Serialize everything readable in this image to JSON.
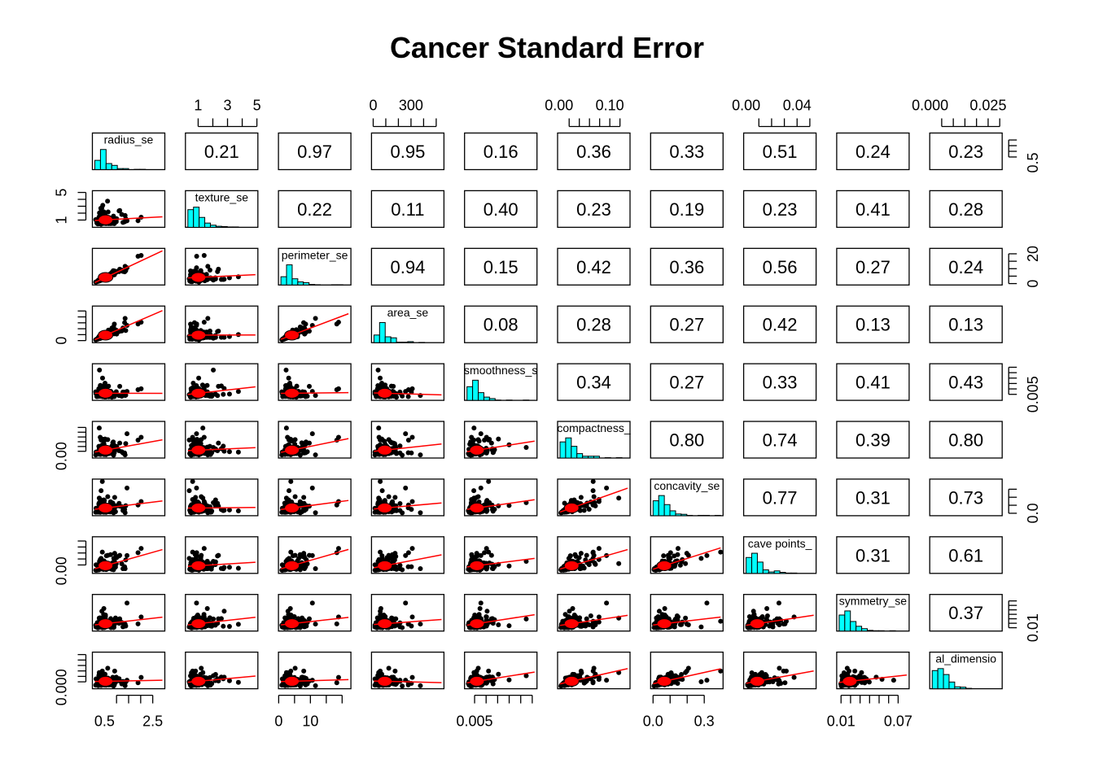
{
  "chart_data": {
    "type": "scatter",
    "title": "Cancer Standard Error",
    "variables": [
      "radius_se",
      "texture_se",
      "perimeter_se",
      "area_se",
      "smoothness_se",
      "compactness_se",
      "concavity_se",
      "concave points_se",
      "symmetry_se",
      "fractal_dimension_se"
    ],
    "diagonal_labels": [
      "radius_se",
      "texture_se",
      "perimeter_se",
      "area_se",
      "smoothness_s",
      "compactness_",
      "concavity_se",
      "cave points_",
      "symmetry_se",
      "al_dimensio"
    ],
    "correlation_matrix": [
      [
        1,
        0.21,
        0.97,
        0.95,
        0.16,
        0.36,
        0.33,
        0.51,
        0.24,
        0.23
      ],
      [
        0.21,
        1,
        0.22,
        0.11,
        0.4,
        0.23,
        0.19,
        0.23,
        0.41,
        0.28
      ],
      [
        0.97,
        0.22,
        1,
        0.94,
        0.15,
        0.42,
        0.36,
        0.56,
        0.27,
        0.24
      ],
      [
        0.95,
        0.11,
        0.94,
        1,
        0.08,
        0.28,
        0.27,
        0.42,
        0.13,
        0.13
      ],
      [
        0.16,
        0.4,
        0.15,
        0.08,
        1,
        0.34,
        0.27,
        0.33,
        0.41,
        0.43
      ],
      [
        0.36,
        0.23,
        0.42,
        0.28,
        0.34,
        1,
        0.8,
        0.74,
        0.39,
        0.8
      ],
      [
        0.33,
        0.19,
        0.36,
        0.27,
        0.27,
        0.8,
        1,
        0.77,
        0.31,
        0.73
      ],
      [
        0.51,
        0.23,
        0.56,
        0.42,
        0.33,
        0.74,
        0.77,
        1,
        0.31,
        0.61
      ],
      [
        0.24,
        0.41,
        0.27,
        0.13,
        0.41,
        0.39,
        0.31,
        0.31,
        1,
        0.37
      ],
      [
        0.23,
        0.28,
        0.24,
        0.13,
        0.43,
        0.8,
        0.73,
        0.61,
        0.37,
        1
      ]
    ],
    "correlation_labels": [
      [
        "",
        "0.21",
        "0.97",
        "0.95",
        "0.16",
        "0.36",
        "0.33",
        "0.51",
        "0.24",
        "0.23"
      ],
      [
        "",
        "",
        "0.22",
        "0.11",
        "0.40",
        "0.23",
        "0.19",
        "0.23",
        "0.41",
        "0.28"
      ],
      [
        "",
        "",
        "",
        "0.94",
        "0.15",
        "0.42",
        "0.36",
        "0.56",
        "0.27",
        "0.24"
      ],
      [
        "",
        "",
        "",
        "",
        "0.08",
        "0.28",
        "0.27",
        "0.42",
        "0.13",
        "0.13"
      ],
      [
        "",
        "",
        "",
        "",
        "",
        "0.34",
        "0.27",
        "0.33",
        "0.41",
        "0.43"
      ],
      [
        "",
        "",
        "",
        "",
        "",
        "",
        "0.80",
        "0.74",
        "0.39",
        "0.80"
      ],
      [
        "",
        "",
        "",
        "",
        "",
        "",
        "",
        "0.77",
        "0.31",
        "0.73"
      ],
      [
        "",
        "",
        "",
        "",
        "",
        "",
        "",
        "",
        "0.31",
        "0.61"
      ],
      [
        "",
        "",
        "",
        "",
        "",
        "",
        "",
        "",
        "",
        "0.37"
      ],
      [
        "",
        "",
        "",
        "",
        "",
        "",
        "",
        "",
        "",
        ""
      ]
    ],
    "ranges": [
      [
        0.1,
        2.9
      ],
      [
        0.3,
        4.9
      ],
      [
        0.7,
        22
      ],
      [
        6,
        542
      ],
      [
        0.0017,
        0.031
      ],
      [
        0.002,
        0.135
      ],
      [
        0.0,
        0.396
      ],
      [
        0.0,
        0.053
      ],
      [
        0.008,
        0.079
      ],
      [
        0.0009,
        0.03
      ]
    ],
    "top_axis_ticks": [
      {
        "var": 1,
        "labels": [
          "1",
          "3",
          "5"
        ],
        "values": [
          1,
          3,
          5
        ],
        "minor": [
          1,
          2,
          3,
          4,
          5
        ]
      },
      {
        "var": 3,
        "labels": [
          "0",
          "300"
        ],
        "values": [
          0,
          300
        ],
        "minor": [
          0,
          100,
          200,
          300,
          400,
          500
        ]
      },
      {
        "var": 5,
        "labels": [
          "0.00",
          "0.10"
        ],
        "values": [
          0.0,
          0.1
        ],
        "minor": [
          0.02,
          0.04,
          0.06,
          0.08,
          0.1,
          0.12
        ]
      },
      {
        "var": 7,
        "labels": [
          "0.00",
          "0.04"
        ],
        "values": [
          0.0,
          0.04
        ],
        "minor": [
          0.01,
          0.02,
          0.03,
          0.04,
          0.05
        ]
      },
      {
        "var": 9,
        "labels": [
          "0.000",
          "0.025"
        ],
        "values": [
          0.0,
          0.025
        ],
        "minor": [
          0.005,
          0.01,
          0.015,
          0.02,
          0.025,
          0.03
        ]
      }
    ],
    "bottom_axis_ticks": [
      {
        "var": 0,
        "labels": [
          "0.5",
          "2.5"
        ],
        "values": [
          0.5,
          2.5
        ],
        "minor": [
          1,
          1.5,
          2,
          2.5
        ]
      },
      {
        "var": 2,
        "labels": [
          "0",
          "10"
        ],
        "values": [
          0,
          10
        ],
        "minor": [
          0,
          5,
          10,
          15,
          20
        ]
      },
      {
        "var": 4,
        "labels": [
          "0.005"
        ],
        "values": [
          0.005
        ],
        "minor": [
          0.005,
          0.01,
          0.015,
          0.02,
          0.025,
          0.03
        ]
      },
      {
        "var": 6,
        "labels": [
          "0.0",
          "0.3"
        ],
        "values": [
          0.0,
          0.3
        ],
        "minor": [
          0.0,
          0.1,
          0.2,
          0.3
        ]
      },
      {
        "var": 8,
        "labels": [
          "0.01",
          "0.07"
        ],
        "values": [
          0.01,
          0.07
        ],
        "minor": [
          0.01,
          0.02,
          0.03,
          0.04,
          0.05,
          0.06,
          0.07
        ]
      }
    ],
    "left_axis_ticks": [
      {
        "var": 1,
        "labels": [
          "1",
          "5"
        ],
        "values": [
          1,
          5
        ],
        "minor": [
          1,
          2,
          3,
          4,
          5
        ]
      },
      {
        "var": 3,
        "labels": [
          "0"
        ],
        "values": [
          0
        ],
        "minor": [
          0,
          100,
          200,
          300,
          400,
          500
        ]
      },
      {
        "var": 5,
        "labels": [
          "0.00"
        ],
        "values": [
          0.0
        ],
        "minor": [
          0.02,
          0.04,
          0.06,
          0.08,
          0.1,
          0.12
        ]
      },
      {
        "var": 7,
        "labels": [
          "0.00"
        ],
        "values": [
          0.0
        ],
        "minor": [
          0.01,
          0.02,
          0.03,
          0.04,
          0.05
        ]
      },
      {
        "var": 9,
        "labels": [
          "0.000"
        ],
        "values": [
          0.0
        ],
        "minor": [
          0.005,
          0.01,
          0.015,
          0.02,
          0.025,
          0.03
        ]
      }
    ],
    "right_axis_ticks": [
      {
        "var": 0,
        "labels": [
          "0.5"
        ],
        "values": [
          0.5
        ],
        "minor": [
          1,
          1.5,
          2,
          2.5
        ]
      },
      {
        "var": 2,
        "labels": [
          "0",
          "20"
        ],
        "values": [
          0,
          20
        ],
        "minor": [
          0,
          5,
          10,
          15,
          20
        ]
      },
      {
        "var": 4,
        "labels": [
          "0.005"
        ],
        "values": [
          0.005
        ],
        "minor": [
          0.005,
          0.01,
          0.015,
          0.02,
          0.025,
          0.03
        ]
      },
      {
        "var": 6,
        "labels": [
          "0.0"
        ],
        "values": [
          0.0
        ],
        "minor": [
          0.0,
          0.1,
          0.2,
          0.3
        ]
      },
      {
        "var": 8,
        "labels": [
          "0.01"
        ],
        "values": [
          0.01
        ],
        "minor": [
          0.01,
          0.02,
          0.03,
          0.04,
          0.05,
          0.06,
          0.07
        ]
      }
    ],
    "histogram_fill": "#00ffff",
    "point_color": "#000000",
    "smooth_color": "#ff0000",
    "density_ellipse_color": "#ff0000",
    "grid": false,
    "legend": "none"
  }
}
